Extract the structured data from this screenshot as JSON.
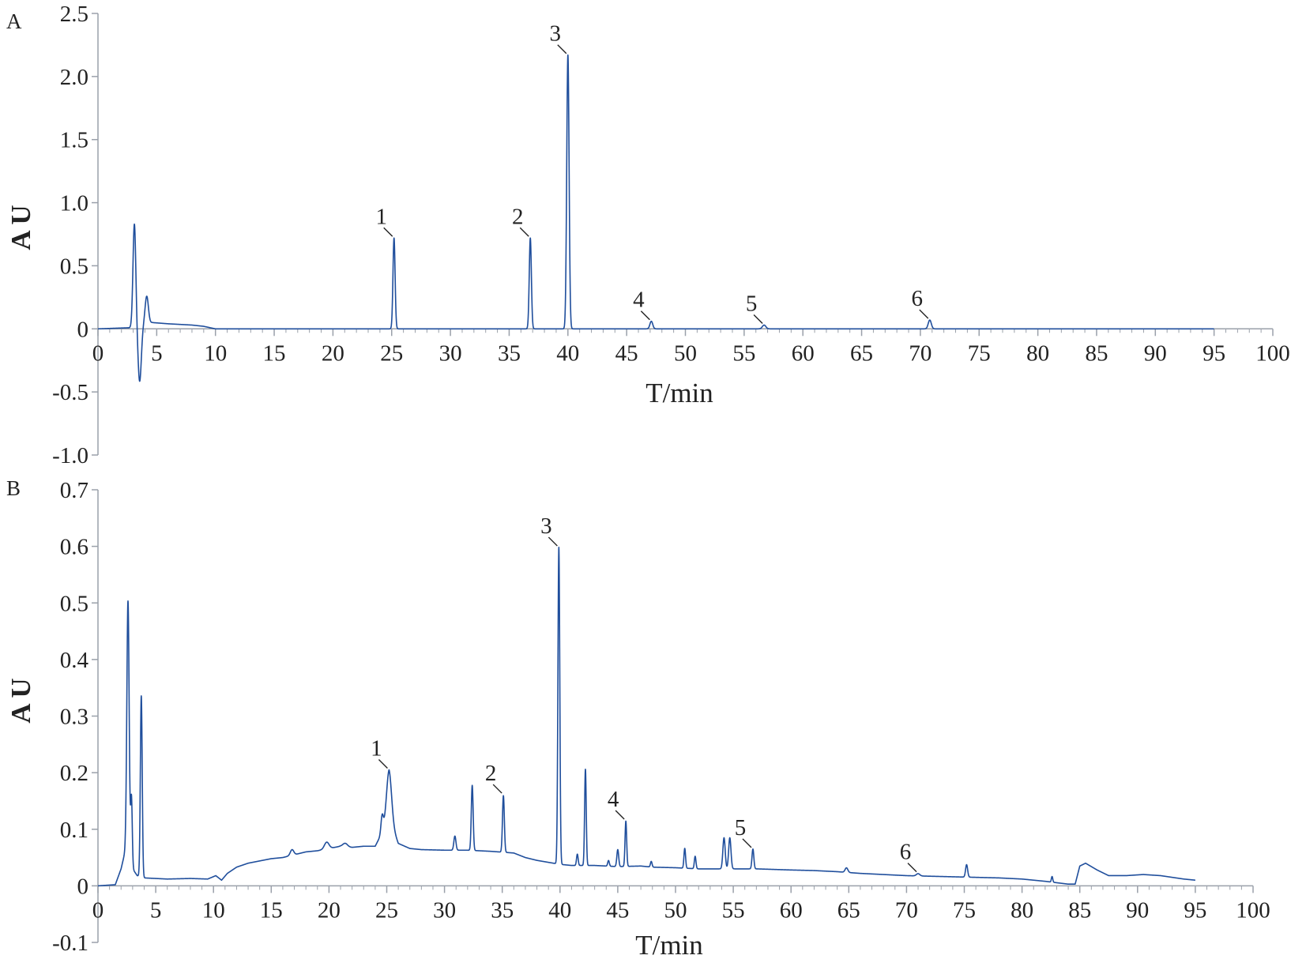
{
  "chart_data": [
    {
      "type": "line",
      "panel_label": "A",
      "xlabel": "T/min",
      "ylabel": "A U",
      "xlim": [
        0,
        100
      ],
      "ylim": [
        -1.0,
        2.5
      ],
      "xticks": [
        0,
        5,
        10,
        15,
        20,
        25,
        30,
        35,
        40,
        45,
        50,
        55,
        60,
        65,
        70,
        75,
        80,
        85,
        90,
        95,
        100
      ],
      "xtick_labels": [
        "0",
        "5",
        "10",
        "15",
        "20",
        "25",
        "30",
        "35",
        "40",
        "45",
        "50",
        "55",
        "60",
        "65",
        "70",
        "75",
        "80",
        "85",
        "90",
        "95",
        "100"
      ],
      "yticks": [
        -1.0,
        -0.5,
        0,
        0.5,
        1.0,
        1.5,
        2.0,
        2.5
      ],
      "ytick_labels": [
        "-1.0",
        "-0.5",
        "0",
        "0.5",
        "1.0",
        "1.5",
        "2.0",
        "2.5"
      ],
      "grid": false,
      "line_color": "#1f4e9c",
      "baseline": [
        [
          0,
          0
        ],
        [
          3,
          0.01
        ],
        [
          4.6,
          0.05
        ],
        [
          6,
          0.04
        ],
        [
          8,
          0.03
        ],
        [
          9,
          0.02
        ],
        [
          10,
          0.0
        ],
        [
          95,
          0.0
        ]
      ],
      "peaks": [
        {
          "x": 3.1,
          "height": 0.82,
          "width": 0.12
        },
        {
          "x": 3.55,
          "height": -0.44,
          "width": 0.14
        },
        {
          "x": 4.15,
          "height": 0.22,
          "width": 0.14
        },
        {
          "x": 25.2,
          "height": 0.72,
          "width": 0.09
        },
        {
          "x": 36.8,
          "height": 0.72,
          "width": 0.09
        },
        {
          "x": 40.0,
          "height": 2.17,
          "width": 0.1
        },
        {
          "x": 47.1,
          "height": 0.06,
          "width": 0.12
        },
        {
          "x": 56.7,
          "height": 0.03,
          "width": 0.15
        },
        {
          "x": 70.8,
          "height": 0.07,
          "width": 0.13
        }
      ],
      "annotations": [
        {
          "text": "1",
          "x": 25.2,
          "y": 0.72
        },
        {
          "text": "2",
          "x": 36.8,
          "y": 0.72
        },
        {
          "text": "3",
          "x": 40.0,
          "y": 2.17
        },
        {
          "text": "4",
          "x": 47.1,
          "y": 0.06
        },
        {
          "text": "5",
          "x": 56.7,
          "y": 0.03
        },
        {
          "text": "6",
          "x": 70.8,
          "y": 0.07
        }
      ]
    },
    {
      "type": "line",
      "panel_label": "B",
      "xlabel": "T/min",
      "ylabel": "A U",
      "xlim": [
        0,
        100
      ],
      "ylim": [
        -0.1,
        0.7
      ],
      "xticks": [
        0,
        5,
        10,
        15,
        20,
        25,
        30,
        35,
        40,
        45,
        50,
        55,
        60,
        65,
        70,
        75,
        80,
        85,
        90,
        95,
        100
      ],
      "xtick_labels": [
        "0",
        "5",
        "10",
        "15",
        "20",
        "25",
        "30",
        "35",
        "40",
        "45",
        "50",
        "55",
        "60",
        "65",
        "70",
        "75",
        "80",
        "85",
        "90",
        "95",
        "100"
      ],
      "yticks": [
        -0.1,
        0,
        0.1,
        0.2,
        0.3,
        0.4,
        0.5,
        0.6,
        0.7
      ],
      "ytick_labels": [
        "-0.1",
        "0",
        "0.1",
        "0.2",
        "0.3",
        "0.4",
        "0.5",
        "0.6",
        "0.7"
      ],
      "grid": false,
      "line_color": "#1f4e9c",
      "baseline": [
        [
          0,
          0
        ],
        [
          1.5,
          0.002
        ],
        [
          2,
          0.03
        ],
        [
          2.4,
          0.065
        ],
        [
          3,
          0.03
        ],
        [
          3.4,
          0.018
        ],
        [
          4,
          0.014
        ],
        [
          6,
          0.012
        ],
        [
          8,
          0.013
        ],
        [
          9.5,
          0.012
        ],
        [
          10.2,
          0.018
        ],
        [
          10.7,
          0.01
        ],
        [
          11.2,
          0.022
        ],
        [
          12,
          0.033
        ],
        [
          13,
          0.04
        ],
        [
          15,
          0.048
        ],
        [
          16,
          0.05
        ],
        [
          17,
          0.055
        ],
        [
          18,
          0.06
        ],
        [
          19,
          0.062
        ],
        [
          20,
          0.066
        ],
        [
          21,
          0.07
        ],
        [
          22,
          0.068
        ],
        [
          23,
          0.07
        ],
        [
          24,
          0.07
        ],
        [
          24.5,
          0.09
        ],
        [
          25.2,
          0.12
        ],
        [
          26,
          0.075
        ],
        [
          27,
          0.066
        ],
        [
          28,
          0.064
        ],
        [
          30,
          0.063
        ],
        [
          32,
          0.063
        ],
        [
          34,
          0.061
        ],
        [
          36,
          0.058
        ],
        [
          37,
          0.05
        ],
        [
          38,
          0.045
        ],
        [
          40,
          0.038
        ],
        [
          41,
          0.036
        ],
        [
          43,
          0.036
        ],
        [
          45,
          0.034
        ],
        [
          47,
          0.035
        ],
        [
          48,
          0.033
        ],
        [
          50,
          0.032
        ],
        [
          52,
          0.03
        ],
        [
          54,
          0.03
        ],
        [
          55,
          0.03
        ],
        [
          57,
          0.03
        ],
        [
          60,
          0.028
        ],
        [
          62,
          0.027
        ],
        [
          64,
          0.025
        ],
        [
          66,
          0.022
        ],
        [
          68,
          0.02
        ],
        [
          70,
          0.018
        ],
        [
          72,
          0.017
        ],
        [
          74,
          0.016
        ],
        [
          76,
          0.015
        ],
        [
          78,
          0.014
        ],
        [
          80,
          0.012
        ],
        [
          82,
          0.008
        ],
        [
          84,
          0.003
        ],
        [
          84.6,
          0.003
        ],
        [
          85,
          0.035
        ],
        [
          85.5,
          0.04
        ],
        [
          86.5,
          0.028
        ],
        [
          87.5,
          0.018
        ],
        [
          89,
          0.018
        ],
        [
          90.5,
          0.02
        ],
        [
          92,
          0.018
        ],
        [
          94,
          0.012
        ],
        [
          95,
          0.01
        ]
      ],
      "peaks": [
        {
          "x": 2.6,
          "height": 0.45,
          "width": 0.1
        },
        {
          "x": 2.9,
          "height": 0.12,
          "width": 0.07
        },
        {
          "x": 3.75,
          "height": 0.32,
          "width": 0.08
        },
        {
          "x": 16.8,
          "height": 0.01,
          "width": 0.15
        },
        {
          "x": 19.8,
          "height": 0.012,
          "width": 0.2
        },
        {
          "x": 21.4,
          "height": 0.006,
          "width": 0.2
        },
        {
          "x": 24.6,
          "height": 0.03,
          "width": 0.1
        },
        {
          "x": 25.2,
          "height": 0.085,
          "width": 0.22
        },
        {
          "x": 30.9,
          "height": 0.025,
          "width": 0.09
        },
        {
          "x": 32.4,
          "height": 0.115,
          "width": 0.08
        },
        {
          "x": 35.1,
          "height": 0.1,
          "width": 0.08
        },
        {
          "x": 39.9,
          "height": 0.56,
          "width": 0.08
        },
        {
          "x": 41.5,
          "height": 0.02,
          "width": 0.07
        },
        {
          "x": 42.2,
          "height": 0.17,
          "width": 0.07
        },
        {
          "x": 44.2,
          "height": 0.01,
          "width": 0.07
        },
        {
          "x": 45.0,
          "height": 0.03,
          "width": 0.08
        },
        {
          "x": 45.7,
          "height": 0.08,
          "width": 0.07
        },
        {
          "x": 47.9,
          "height": 0.01,
          "width": 0.07
        },
        {
          "x": 50.8,
          "height": 0.035,
          "width": 0.07
        },
        {
          "x": 51.7,
          "height": 0.022,
          "width": 0.07
        },
        {
          "x": 54.2,
          "height": 0.055,
          "width": 0.1
        },
        {
          "x": 54.7,
          "height": 0.055,
          "width": 0.1
        },
        {
          "x": 56.7,
          "height": 0.035,
          "width": 0.08
        },
        {
          "x": 64.8,
          "height": 0.008,
          "width": 0.12
        },
        {
          "x": 71.0,
          "height": 0.004,
          "width": 0.15
        },
        {
          "x": 75.2,
          "height": 0.022,
          "width": 0.09
        },
        {
          "x": 82.6,
          "height": 0.01,
          "width": 0.06
        }
      ],
      "annotations": [
        {
          "text": "1",
          "x": 25.2,
          "y": 0.205
        },
        {
          "text": "2",
          "x": 35.1,
          "y": 0.161
        },
        {
          "text": "3",
          "x": 39.9,
          "y": 0.598
        },
        {
          "text": "4",
          "x": 45.7,
          "y": 0.115
        },
        {
          "text": "5",
          "x": 56.7,
          "y": 0.065
        },
        {
          "text": "6",
          "x": 71.0,
          "y": 0.022
        }
      ]
    }
  ]
}
